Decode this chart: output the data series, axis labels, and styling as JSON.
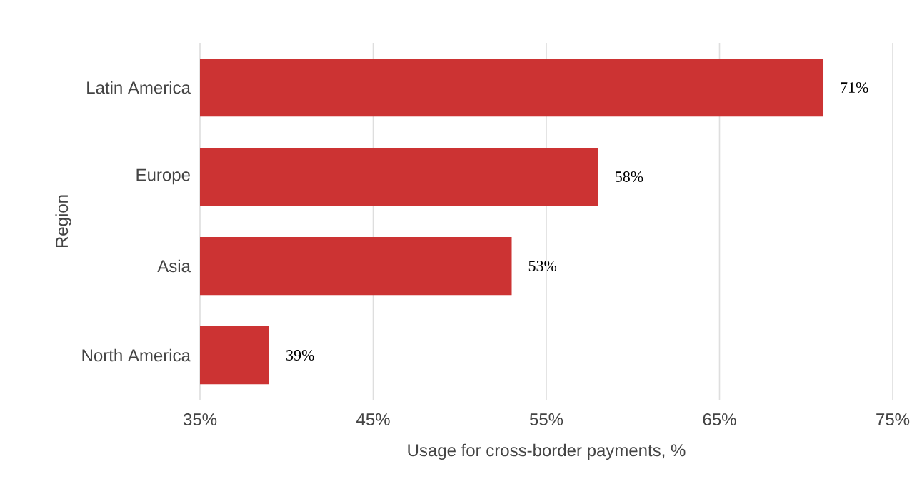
{
  "chart_data": {
    "type": "bar",
    "orientation": "horizontal",
    "xlabel": "Usage for cross-border payments, %",
    "ylabel": "Region",
    "categories": [
      "Latin America",
      "Europe",
      "Asia",
      "North America"
    ],
    "values": [
      71,
      58,
      53,
      39
    ],
    "value_labels": [
      "71%",
      "58%",
      "53%",
      "39%"
    ],
    "color": "#cc3333",
    "xlim": [
      35,
      75
    ],
    "xticks": [
      {
        "value": 35,
        "label": "35%"
      },
      {
        "value": 45,
        "label": "45%"
      },
      {
        "value": 55,
        "label": "55%"
      },
      {
        "value": 65,
        "label": "65%"
      },
      {
        "value": 75,
        "label": "75%"
      }
    ],
    "grid": "x"
  }
}
